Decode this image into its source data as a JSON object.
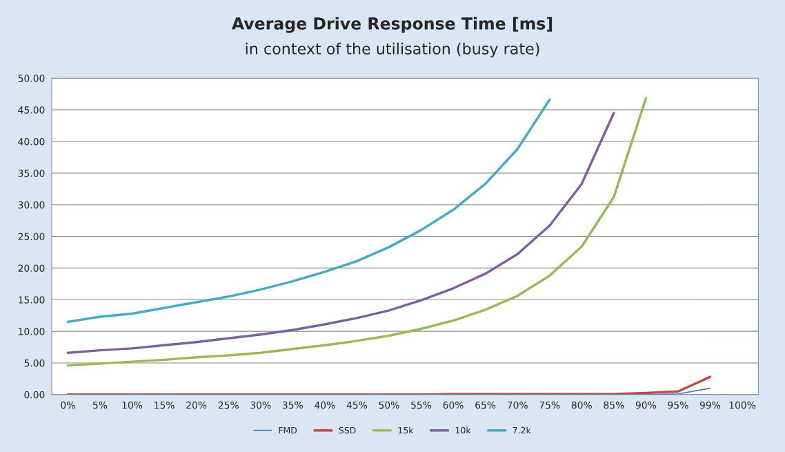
{
  "chart_data": {
    "type": "line",
    "title": "Average Drive Response Time [ms]",
    "subtitle": "in context of the utilisation (busy rate)",
    "categories": [
      "0%",
      "5%",
      "10%",
      "15%",
      "20%",
      "25%",
      "30%",
      "35%",
      "40%",
      "45%",
      "50%",
      "55%",
      "60%",
      "65%",
      "70%",
      "75%",
      "80%",
      "85%",
      "90%",
      "95%",
      "99%",
      "100%"
    ],
    "series": [
      {
        "name": "FMD",
        "color": "#4a7ebb",
        "values": [
          0,
          0,
          0,
          0,
          0,
          0,
          0,
          0,
          0,
          0,
          0,
          0,
          0,
          0,
          0,
          0,
          0,
          0,
          0,
          0.1,
          1.0,
          null
        ]
      },
      {
        "name": "SSD",
        "color": "#be4b48",
        "values": [
          0,
          0,
          0,
          0,
          0,
          0,
          0,
          0,
          0,
          0,
          0,
          0,
          0.1,
          0.1,
          0.1,
          0.1,
          0.1,
          0.1,
          0.25,
          0.5,
          2.8,
          null
        ]
      },
      {
        "name": "15k",
        "color": "#98b954",
        "values": [
          4.6,
          4.9,
          5.2,
          5.5,
          5.9,
          6.2,
          6.6,
          7.2,
          7.8,
          8.5,
          9.3,
          10.4,
          11.7,
          13.4,
          15.6,
          18.8,
          23.4,
          31.2,
          46.8,
          null,
          null,
          null
        ]
      },
      {
        "name": "10k",
        "color": "#7d60a0",
        "values": [
          6.6,
          7.0,
          7.3,
          7.8,
          8.3,
          8.9,
          9.5,
          10.2,
          11.1,
          12.1,
          13.3,
          14.9,
          16.8,
          19.1,
          22.2,
          26.7,
          33.3,
          44.5,
          null,
          null,
          null,
          null
        ]
      },
      {
        "name": "7.2k",
        "color": "#46aac5",
        "values": [
          11.5,
          12.3,
          12.8,
          13.7,
          14.6,
          15.5,
          16.6,
          17.9,
          19.4,
          21.1,
          23.3,
          26.0,
          29.2,
          33.3,
          38.8,
          46.6,
          null,
          null,
          null,
          null,
          null,
          null
        ]
      }
    ],
    "ylim": [
      0,
      50
    ],
    "yticks": [
      {
        "value": 0,
        "label": "0.00"
      },
      {
        "value": 5,
        "label": "5.00"
      },
      {
        "value": 10,
        "label": "10.00"
      },
      {
        "value": 15,
        "label": "15.00"
      },
      {
        "value": 20,
        "label": "20.00"
      },
      {
        "value": 25,
        "label": "25.00"
      },
      {
        "value": 30,
        "label": "30.00"
      },
      {
        "value": 35,
        "label": "35.00"
      },
      {
        "value": 40,
        "label": "40.00"
      },
      {
        "value": 45,
        "label": "45.00"
      },
      {
        "value": 50,
        "label": "50.00"
      }
    ],
    "grid": "y",
    "legend": "bottom",
    "marker": "none",
    "line_style": "solid"
  }
}
